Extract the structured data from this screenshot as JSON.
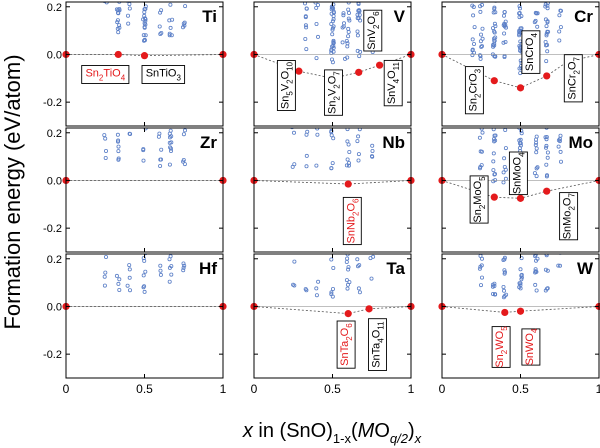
{
  "chart_data": {
    "type": "scatter",
    "ylabel": "Formation energy (eV/atom)",
    "xlabel_parts": {
      "x": "x",
      "mid": " in (SnO)",
      "sub1": "1-x",
      "paren": "(",
      "M": "M",
      "O": "O",
      "sub2": "q/2",
      "close": ")",
      "sub3": "x"
    },
    "xlim": [
      0,
      1
    ],
    "ylim": [
      -0.3,
      0.22
    ],
    "xticks": [
      0,
      0.5,
      1
    ],
    "xtick_labels": [
      "0",
      "0.5",
      "1"
    ],
    "yticks": [
      -0.2,
      0.0,
      0.2
    ],
    "ytick_labels": [
      "-0.2",
      "0.0",
      "0.2"
    ],
    "colors": {
      "hull": "#e41a1c",
      "cloud": "#5b7fc7",
      "hull_line": "#999999",
      "frame": "#000000",
      "label_red": "#e41a1c"
    },
    "panels": [
      {
        "element": "Ti",
        "hull": [
          [
            0,
            0.0
          ],
          [
            0.333,
            0.0
          ],
          [
            0.5,
            -0.005
          ],
          [
            1,
            0.0
          ]
        ],
        "cloud_columns": [
          [
            0.25,
            3
          ],
          [
            0.333,
            28
          ],
          [
            0.4,
            6
          ],
          [
            0.5,
            34
          ],
          [
            0.6,
            7
          ],
          [
            0.667,
            10
          ],
          [
            0.75,
            6
          ]
        ],
        "labels": [
          {
            "parts": [
              [
                "Sn",
                "n"
              ],
              [
                "2",
                "s"
              ],
              [
                "TiO",
                "n"
              ],
              [
                "4",
                "s"
              ]
            ],
            "x": 0.25,
            "y": -0.08,
            "color": "red",
            "rotate": false
          },
          {
            "parts": [
              [
                "SnTiO",
                "n"
              ],
              [
                "3",
                "s"
              ]
            ],
            "x": 0.62,
            "y": -0.08,
            "color": "black",
            "rotate": false
          }
        ]
      },
      {
        "element": "V",
        "hull": [
          [
            0,
            0.0
          ],
          [
            0.286,
            -0.07
          ],
          [
            0.5,
            -0.1
          ],
          [
            0.667,
            -0.075
          ],
          [
            0.8,
            -0.045
          ],
          [
            1,
            0.0
          ]
        ],
        "cloud_columns": [
          [
            0.333,
            9
          ],
          [
            0.4,
            6
          ],
          [
            0.5,
            30
          ],
          [
            0.571,
            7
          ],
          [
            0.6,
            12
          ],
          [
            0.667,
            18
          ],
          [
            0.75,
            6
          ]
        ],
        "labels": [
          {
            "parts": [
              [
                "Sn",
                "n"
              ],
              [
                "5",
                "s"
              ],
              [
                "V",
                "n"
              ],
              [
                "2",
                "s"
              ],
              [
                "O",
                "n"
              ],
              [
                "10",
                "s"
              ]
            ],
            "x": 0.2,
            "y": -0.13,
            "color": "black",
            "rotate": true
          },
          {
            "parts": [
              [
                "Sn",
                "n"
              ],
              [
                "2",
                "s"
              ],
              [
                "V",
                "n"
              ],
              [
                "2",
                "s"
              ],
              [
                "O",
                "n"
              ],
              [
                "7",
                "s"
              ]
            ],
            "x": 0.5,
            "y": -0.16,
            "color": "black",
            "rotate": true
          },
          {
            "parts": [
              [
                "SnV",
                "n"
              ],
              [
                "2",
                "s"
              ],
              [
                "O",
                "n"
              ],
              [
                "6",
                "s"
              ]
            ],
            "x": 0.75,
            "y": 0.1,
            "color": "black",
            "rotate": true
          },
          {
            "parts": [
              [
                "SnV",
                "n"
              ],
              [
                "4",
                "s"
              ],
              [
                "O",
                "n"
              ],
              [
                "11",
                "s"
              ]
            ],
            "x": 0.88,
            "y": -0.12,
            "color": "black",
            "rotate": true
          }
        ]
      },
      {
        "element": "Cr",
        "hull": [
          [
            0,
            0.0
          ],
          [
            0.333,
            -0.11
          ],
          [
            0.5,
            -0.14
          ],
          [
            0.667,
            -0.09
          ],
          [
            0.8,
            -0.03
          ],
          [
            1,
            0.0
          ]
        ],
        "cloud_columns": [
          [
            0.2,
            10
          ],
          [
            0.25,
            12
          ],
          [
            0.333,
            24
          ],
          [
            0.4,
            14
          ],
          [
            0.5,
            30
          ],
          [
            0.6,
            10
          ],
          [
            0.667,
            18
          ],
          [
            0.75,
            8
          ]
        ],
        "labels": [
          {
            "parts": [
              [
                "Sn",
                "n"
              ],
              [
                "2",
                "s"
              ],
              [
                "CrO",
                "n"
              ],
              [
                "3",
                "s"
              ]
            ],
            "x": 0.2,
            "y": -0.15,
            "color": "black",
            "rotate": true
          },
          {
            "parts": [
              [
                "SnCrO",
                "n"
              ],
              [
                "4",
                "s"
              ]
            ],
            "x": 0.56,
            "y": 0.01,
            "color": "black",
            "rotate": true
          },
          {
            "parts": [
              [
                "SnCr",
                "n"
              ],
              [
                "2",
                "s"
              ],
              [
                "O",
                "n"
              ],
              [
                "7",
                "s"
              ]
            ],
            "x": 0.83,
            "y": -0.1,
            "color": "black",
            "rotate": true
          }
        ]
      },
      {
        "element": "Zr",
        "hull": [
          [
            0,
            0.0
          ],
          [
            1,
            0.0
          ]
        ],
        "cloud_columns": [
          [
            0.25,
            8
          ],
          [
            0.333,
            12
          ],
          [
            0.4,
            6
          ],
          [
            0.5,
            14
          ],
          [
            0.6,
            8
          ],
          [
            0.667,
            10
          ],
          [
            0.75,
            6
          ]
        ],
        "labels": []
      },
      {
        "element": "Nb",
        "hull": [
          [
            0,
            0.0
          ],
          [
            0.6,
            -0.015
          ],
          [
            1,
            0.0
          ]
        ],
        "cloud_columns": [
          [
            0.25,
            4
          ],
          [
            0.333,
            6
          ],
          [
            0.4,
            5
          ],
          [
            0.5,
            8
          ],
          [
            0.6,
            12
          ],
          [
            0.667,
            6
          ],
          [
            0.75,
            5
          ]
        ],
        "labels": [
          {
            "parts": [
              [
                "SnNb",
                "n"
              ],
              [
                "2",
                "s"
              ],
              [
                "O",
                "n"
              ],
              [
                "6",
                "s"
              ]
            ],
            "x": 0.62,
            "y": -0.17,
            "color": "red",
            "rotate": true
          }
        ]
      },
      {
        "element": "Mo",
        "hull": [
          [
            0,
            0.0
          ],
          [
            0.333,
            -0.07
          ],
          [
            0.5,
            -0.075
          ],
          [
            0.667,
            -0.045
          ],
          [
            1,
            0.0
          ]
        ],
        "cloud_columns": [
          [
            0.25,
            10
          ],
          [
            0.333,
            14
          ],
          [
            0.4,
            10
          ],
          [
            0.5,
            20
          ],
          [
            0.6,
            10
          ],
          [
            0.667,
            12
          ],
          [
            0.75,
            8
          ]
        ],
        "labels": [
          {
            "parts": [
              [
                "Sn",
                "n"
              ],
              [
                "2",
                "s"
              ],
              [
                "MoO",
                "n"
              ],
              [
                "5",
                "s"
              ]
            ],
            "x": 0.23,
            "y": -0.08,
            "color": "black",
            "rotate": true
          },
          {
            "parts": [
              [
                "SnMoO",
                "n"
              ],
              [
                "4",
                "s"
              ]
            ],
            "x": 0.48,
            "y": 0.03,
            "color": "black",
            "rotate": true
          },
          {
            "parts": [
              [
                "SnMo",
                "n"
              ],
              [
                "2",
                "s"
              ],
              [
                "O",
                "n"
              ],
              [
                "7",
                "s"
              ]
            ],
            "x": 0.8,
            "y": -0.15,
            "color": "black",
            "rotate": true
          }
        ]
      },
      {
        "element": "Hf",
        "hull": [
          [
            0,
            0.0
          ],
          [
            1,
            0.0
          ]
        ],
        "cloud_columns": [
          [
            0.25,
            6
          ],
          [
            0.333,
            10
          ],
          [
            0.4,
            6
          ],
          [
            0.5,
            12
          ],
          [
            0.6,
            8
          ],
          [
            0.667,
            8
          ],
          [
            0.75,
            6
          ]
        ],
        "labels": []
      },
      {
        "element": "Ta",
        "hull": [
          [
            0,
            0.0
          ],
          [
            0.6,
            -0.03
          ],
          [
            0.733,
            -0.01
          ],
          [
            1,
            0.0
          ]
        ],
        "cloud_columns": [
          [
            0.25,
            4
          ],
          [
            0.333,
            6
          ],
          [
            0.4,
            5
          ],
          [
            0.5,
            8
          ],
          [
            0.6,
            10
          ],
          [
            0.667,
            6
          ],
          [
            0.75,
            5
          ]
        ],
        "labels": [
          {
            "parts": [
              [
                "SnTa",
                "n"
              ],
              [
                "2",
                "s"
              ],
              [
                "O",
                "n"
              ],
              [
                "6",
                "s"
              ]
            ],
            "x": 0.58,
            "y": -0.16,
            "color": "red",
            "rotate": true
          },
          {
            "parts": [
              [
                "SnTa",
                "n"
              ],
              [
                "4",
                "s"
              ],
              [
                "O",
                "n"
              ],
              [
                "11",
                "s"
              ]
            ],
            "x": 0.78,
            "y": -0.16,
            "color": "black",
            "rotate": true
          }
        ]
      },
      {
        "element": "W",
        "hull": [
          [
            0,
            0.0
          ],
          [
            0.4,
            -0.025
          ],
          [
            0.5,
            -0.02
          ],
          [
            1,
            0.0
          ]
        ],
        "cloud_columns": [
          [
            0.25,
            10
          ],
          [
            0.333,
            14
          ],
          [
            0.4,
            12
          ],
          [
            0.5,
            22
          ],
          [
            0.6,
            10
          ],
          [
            0.667,
            12
          ],
          [
            0.75,
            8
          ]
        ],
        "labels": [
          {
            "parts": [
              [
                "Sn",
                "n"
              ],
              [
                "2",
                "s"
              ],
              [
                "WO",
                "n"
              ],
              [
                "5",
                "s"
              ]
            ],
            "x": 0.37,
            "y": -0.17,
            "color": "red",
            "rotate": true
          },
          {
            "parts": [
              [
                "SnWO",
                "n"
              ],
              [
                "4",
                "s"
              ]
            ],
            "x": 0.56,
            "y": -0.17,
            "color": "red",
            "rotate": true
          }
        ]
      }
    ]
  }
}
